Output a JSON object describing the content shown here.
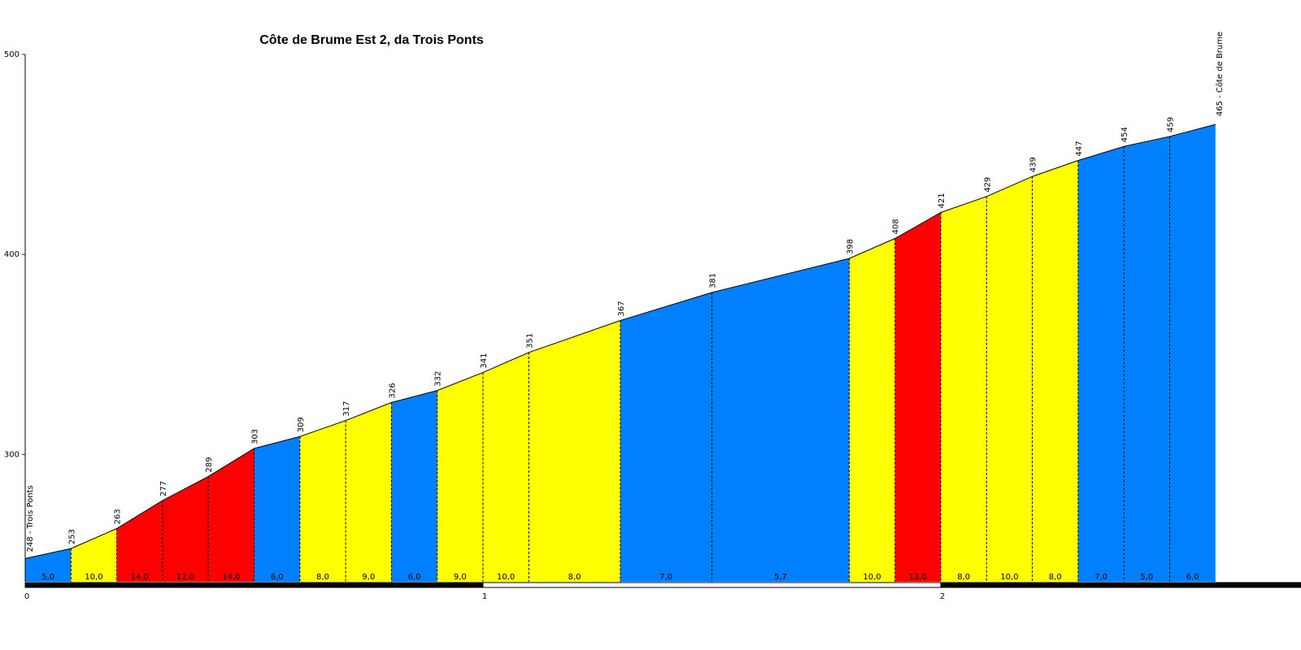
{
  "chart_data": {
    "type": "area",
    "title": "Côte de Brume Est 2, da Trois Ponts",
    "xlabel": "",
    "ylabel": "",
    "xlim": [
      0,
      2.75
    ],
    "ylim": [
      240,
      500
    ],
    "y_ticks": [
      {
        "value": 300,
        "label": "300"
      },
      {
        "value": 400,
        "label": "400"
      },
      {
        "value": 500,
        "label": "500"
      }
    ],
    "x_ticks": [
      {
        "value": 0,
        "label": "0"
      },
      {
        "value": 1,
        "label": "1"
      },
      {
        "value": 2,
        "label": "2"
      }
    ],
    "start_label": "248 - Trois Ponts",
    "end_label": "465 - Côte de Brume",
    "points": [
      {
        "x": 0.0,
        "y": 248,
        "label": ""
      },
      {
        "x": 0.1,
        "y": 253,
        "label": "253"
      },
      {
        "x": 0.2,
        "y": 263,
        "label": "263"
      },
      {
        "x": 0.3,
        "y": 277,
        "label": "277"
      },
      {
        "x": 0.4,
        "y": 289,
        "label": "289"
      },
      {
        "x": 0.5,
        "y": 303,
        "label": "303"
      },
      {
        "x": 0.6,
        "y": 309,
        "label": "309"
      },
      {
        "x": 0.7,
        "y": 317,
        "label": "317"
      },
      {
        "x": 0.8,
        "y": 326,
        "label": "326"
      },
      {
        "x": 0.9,
        "y": 332,
        "label": "332"
      },
      {
        "x": 1.0,
        "y": 341,
        "label": "341"
      },
      {
        "x": 1.1,
        "y": 351,
        "label": "351"
      },
      {
        "x": 1.3,
        "y": 367,
        "label": "367"
      },
      {
        "x": 1.5,
        "y": 381,
        "label": "381"
      },
      {
        "x": 1.8,
        "y": 398,
        "label": "398"
      },
      {
        "x": 1.9,
        "y": 408,
        "label": "408"
      },
      {
        "x": 2.0,
        "y": 421,
        "label": "421"
      },
      {
        "x": 2.1,
        "y": 429,
        "label": "429"
      },
      {
        "x": 2.2,
        "y": 439,
        "label": "439"
      },
      {
        "x": 2.3,
        "y": 447,
        "label": "447"
      },
      {
        "x": 2.4,
        "y": 454,
        "label": "454"
      },
      {
        "x": 2.5,
        "y": 459,
        "label": "459"
      },
      {
        "x": 2.6,
        "y": 465,
        "label": ""
      }
    ],
    "segments": [
      {
        "from": 0.0,
        "to": 0.1,
        "gradient": "5,0",
        "color": "#0080FF"
      },
      {
        "from": 0.1,
        "to": 0.2,
        "gradient": "10,0",
        "color": "#FFFF00"
      },
      {
        "from": 0.2,
        "to": 0.3,
        "gradient": "14,0",
        "color": "#FF0000"
      },
      {
        "from": 0.3,
        "to": 0.4,
        "gradient": "12,0",
        "color": "#FF0000"
      },
      {
        "from": 0.4,
        "to": 0.5,
        "gradient": "14,0",
        "color": "#FF0000"
      },
      {
        "from": 0.5,
        "to": 0.6,
        "gradient": "6,0",
        "color": "#0080FF"
      },
      {
        "from": 0.6,
        "to": 0.7,
        "gradient": "8,0",
        "color": "#FFFF00"
      },
      {
        "from": 0.7,
        "to": 0.8,
        "gradient": "9,0",
        "color": "#FFFF00"
      },
      {
        "from": 0.8,
        "to": 0.9,
        "gradient": "6,0",
        "color": "#0080FF"
      },
      {
        "from": 0.9,
        "to": 1.0,
        "gradient": "9,0",
        "color": "#FFFF00"
      },
      {
        "from": 1.0,
        "to": 1.1,
        "gradient": "10,0",
        "color": "#FFFF00"
      },
      {
        "from": 1.1,
        "to": 1.3,
        "gradient": "8,0",
        "color": "#FFFF00"
      },
      {
        "from": 1.3,
        "to": 1.5,
        "gradient": "7,0",
        "color": "#0080FF"
      },
      {
        "from": 1.5,
        "to": 1.8,
        "gradient": "5,7",
        "color": "#0080FF"
      },
      {
        "from": 1.8,
        "to": 1.9,
        "gradient": "10,0",
        "color": "#FFFF00"
      },
      {
        "from": 1.9,
        "to": 2.0,
        "gradient": "13,0",
        "color": "#FF0000"
      },
      {
        "from": 2.0,
        "to": 2.1,
        "gradient": "8,0",
        "color": "#FFFF00"
      },
      {
        "from": 2.1,
        "to": 2.2,
        "gradient": "10,0",
        "color": "#FFFF00"
      },
      {
        "from": 2.2,
        "to": 2.3,
        "gradient": "8,0",
        "color": "#FFFF00"
      },
      {
        "from": 2.3,
        "to": 2.4,
        "gradient": "7,0",
        "color": "#0080FF"
      },
      {
        "from": 2.4,
        "to": 2.5,
        "gradient": "5,0",
        "color": "#0080FF"
      },
      {
        "from": 2.5,
        "to": 2.6,
        "gradient": "6,0",
        "color": "#0080FF"
      }
    ],
    "colors": {
      "easy": "#0080FF",
      "medium": "#FFFF00",
      "hard": "#FF0000",
      "axis_y": "#800000"
    },
    "grid": false,
    "legend": "none"
  }
}
